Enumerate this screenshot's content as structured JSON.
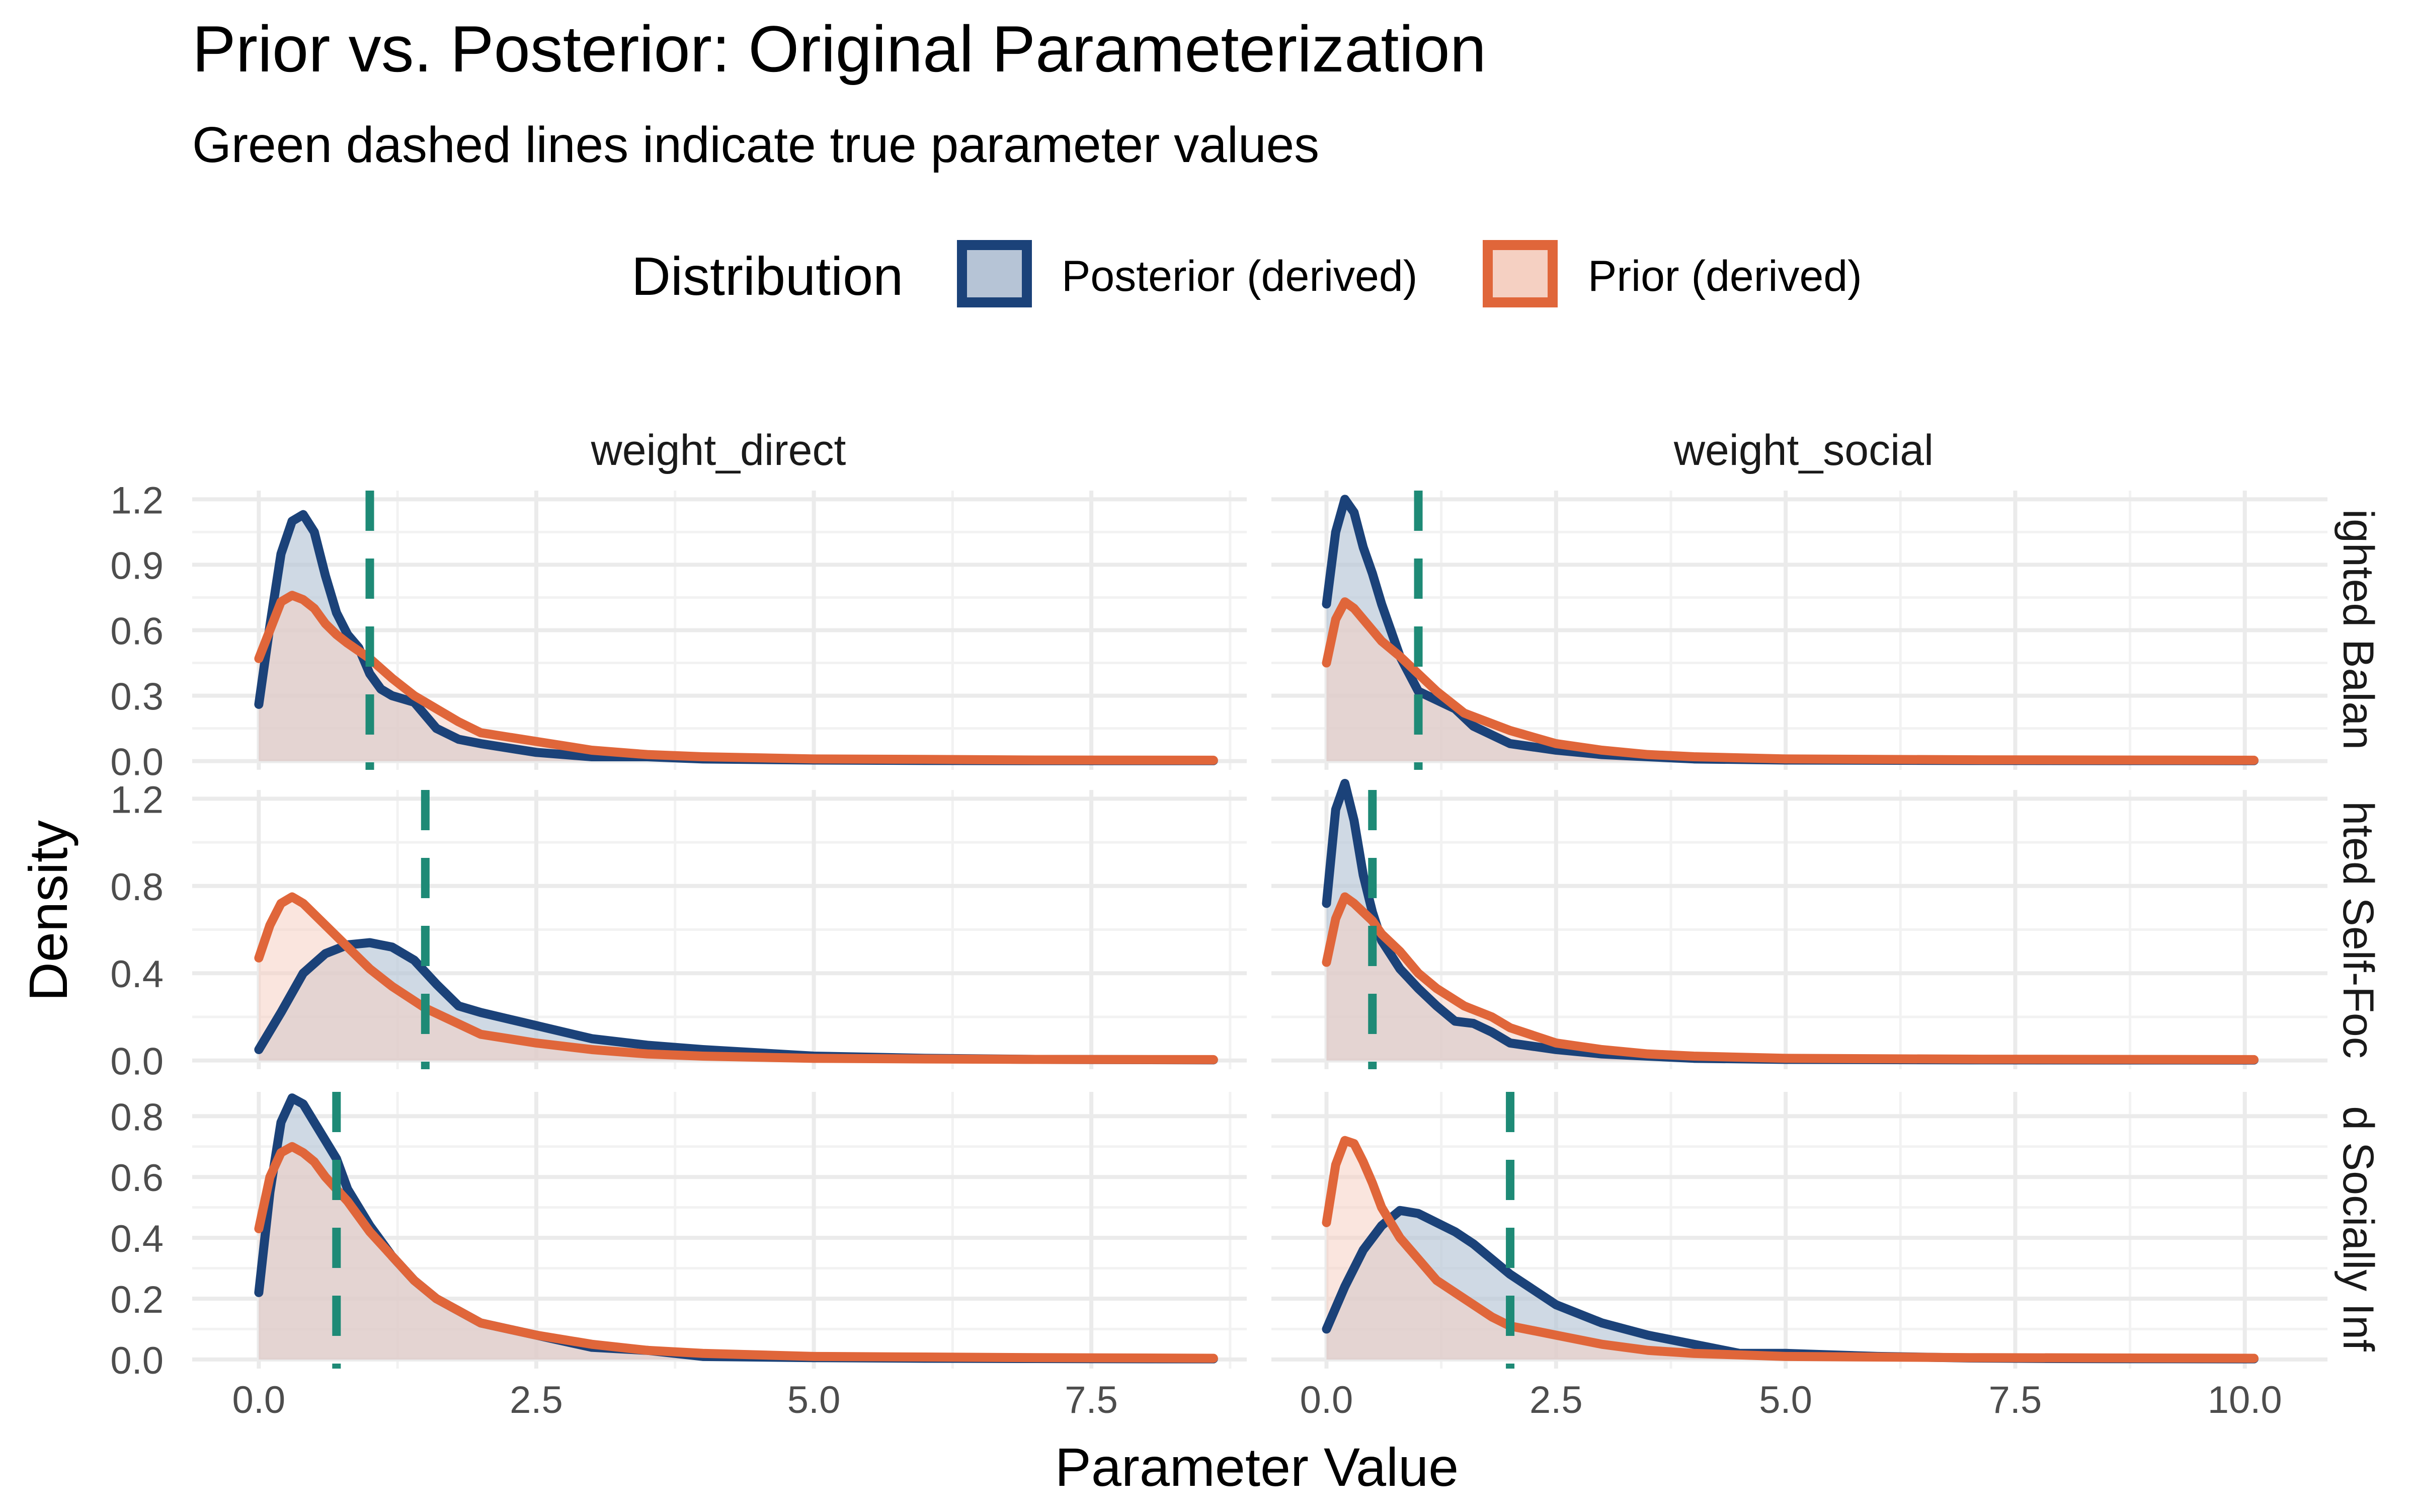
{
  "chart_data": {
    "type": "area",
    "title": "Prior vs. Posterior: Original Parameterization",
    "subtitle": "Green dashed lines indicate true parameter values",
    "xlabel": "Parameter Value",
    "ylabel": "Density",
    "legend": {
      "title": "Distribution",
      "position": "top",
      "entries": [
        {
          "name": "Posterior (derived)",
          "line_color": "#1b4279",
          "fill_color": "#b6c4d6"
        },
        {
          "name": "Prior (derived)",
          "line_color": "#e0663a",
          "fill_color": "#f5d0c2"
        }
      ]
    },
    "colors": {
      "posterior": "#1b4279",
      "prior": "#e0663a",
      "true_value": "#1e8a76",
      "grid": "#ebebeb"
    },
    "grid": true,
    "facet_columns": [
      "weight_direct",
      "weight_social"
    ],
    "facet_rows": [
      "ighted Balan",
      "hted Self-Foc",
      "d Socially Inf"
    ],
    "panels": [
      {
        "row": 0,
        "col": 0,
        "xlim": [
          -0.6,
          8.9
        ],
        "ylim": [
          -0.04,
          1.24
        ],
        "yticks": [
          0.0,
          0.3,
          0.6,
          0.9,
          1.2
        ],
        "ytick_labels": [
          "0.0",
          "0.3",
          "0.6",
          "0.9",
          "1.2"
        ],
        "xticks": [
          0,
          2.5,
          5.0,
          7.5
        ],
        "xtick_labels": [
          "0.0",
          "2.5",
          "5.0",
          "7.5"
        ],
        "true_value": 1.0,
        "series": [
          {
            "name": "Posterior (derived)",
            "x": [
              0.0,
              0.1,
              0.2,
              0.3,
              0.4,
              0.5,
              0.6,
              0.7,
              0.8,
              0.9,
              1.0,
              1.1,
              1.2,
              1.4,
              1.6,
              1.8,
              2.0,
              2.5,
              3.0,
              3.5,
              4.0,
              5.0,
              6.0,
              7.0,
              8.6
            ],
            "y": [
              0.26,
              0.62,
              0.95,
              1.1,
              1.13,
              1.05,
              0.85,
              0.68,
              0.58,
              0.52,
              0.4,
              0.33,
              0.3,
              0.27,
              0.15,
              0.1,
              0.08,
              0.04,
              0.02,
              0.02,
              0.01,
              0.005,
              0.003,
              0.002,
              0.002
            ]
          },
          {
            "name": "Prior (derived)",
            "x": [
              0.0,
              0.1,
              0.2,
              0.3,
              0.4,
              0.5,
              0.6,
              0.7,
              0.8,
              1.0,
              1.2,
              1.4,
              1.6,
              1.8,
              2.0,
              2.5,
              3.0,
              3.5,
              4.0,
              5.0,
              6.0,
              7.0,
              8.6
            ],
            "y": [
              0.47,
              0.6,
              0.73,
              0.76,
              0.74,
              0.7,
              0.63,
              0.58,
              0.54,
              0.47,
              0.38,
              0.3,
              0.24,
              0.18,
              0.13,
              0.09,
              0.05,
              0.03,
              0.02,
              0.01,
              0.008,
              0.005,
              0.004
            ]
          }
        ]
      },
      {
        "row": 0,
        "col": 1,
        "xlim": [
          -0.6,
          10.9
        ],
        "ylim": [
          -0.04,
          1.24
        ],
        "yticks": [
          0.0,
          0.3,
          0.6,
          0.9,
          1.2
        ],
        "ytick_labels": [
          "0.0",
          "0.3",
          "0.6",
          "0.9",
          "1.2"
        ],
        "xticks": [
          0,
          2.5,
          5.0,
          7.5,
          10.0
        ],
        "xtick_labels": [
          "0.0",
          "2.5",
          "5.0",
          "7.5",
          "10.0"
        ],
        "true_value": 1.0,
        "series": [
          {
            "name": "Posterior (derived)",
            "x": [
              0.0,
              0.1,
              0.2,
              0.3,
              0.4,
              0.5,
              0.6,
              0.7,
              0.8,
              1.0,
              1.2,
              1.4,
              1.6,
              1.8,
              2.0,
              2.5,
              3.0,
              3.5,
              4.0,
              5.0,
              7.0,
              10.1
            ],
            "y": [
              0.72,
              1.05,
              1.2,
              1.14,
              0.98,
              0.86,
              0.72,
              0.6,
              0.48,
              0.32,
              0.28,
              0.24,
              0.16,
              0.12,
              0.08,
              0.05,
              0.03,
              0.02,
              0.01,
              0.005,
              0.003,
              0.002
            ]
          },
          {
            "name": "Prior (derived)",
            "x": [
              0.0,
              0.1,
              0.2,
              0.3,
              0.4,
              0.5,
              0.6,
              0.8,
              1.0,
              1.2,
              1.5,
              2.0,
              2.5,
              3.0,
              3.5,
              4.0,
              5.0,
              7.0,
              10.1
            ],
            "y": [
              0.45,
              0.65,
              0.73,
              0.7,
              0.65,
              0.6,
              0.55,
              0.48,
              0.4,
              0.32,
              0.22,
              0.14,
              0.08,
              0.05,
              0.03,
              0.02,
              0.01,
              0.006,
              0.004
            ]
          }
        ]
      },
      {
        "row": 1,
        "col": 0,
        "xlim": [
          -0.6,
          8.9
        ],
        "ylim": [
          -0.04,
          1.24
        ],
        "yticks": [
          0.0,
          0.4,
          0.8,
          1.2
        ],
        "ytick_labels": [
          "0.0",
          "0.4",
          "0.8",
          "1.2"
        ],
        "xticks": [
          0,
          2.5,
          5.0,
          7.5
        ],
        "xtick_labels": [
          "0.0",
          "2.5",
          "5.0",
          "7.5"
        ],
        "true_value": 1.5,
        "series": [
          {
            "name": "Posterior (derived)",
            "x": [
              0.0,
              0.2,
              0.4,
              0.6,
              0.8,
              1.0,
              1.2,
              1.4,
              1.6,
              1.8,
              2.0,
              2.5,
              3.0,
              3.5,
              4.0,
              5.0,
              6.0,
              7.0,
              8.6
            ],
            "y": [
              0.05,
              0.22,
              0.4,
              0.49,
              0.53,
              0.54,
              0.52,
              0.46,
              0.35,
              0.25,
              0.22,
              0.16,
              0.1,
              0.07,
              0.05,
              0.02,
              0.01,
              0.005,
              0.003
            ]
          },
          {
            "name": "Prior (derived)",
            "x": [
              0.0,
              0.1,
              0.2,
              0.3,
              0.4,
              0.6,
              0.8,
              1.0,
              1.2,
              1.5,
              2.0,
              2.5,
              3.0,
              3.5,
              4.0,
              5.0,
              6.0,
              7.0,
              8.6
            ],
            "y": [
              0.47,
              0.62,
              0.72,
              0.75,
              0.72,
              0.62,
              0.52,
              0.42,
              0.34,
              0.24,
              0.12,
              0.08,
              0.05,
              0.03,
              0.02,
              0.01,
              0.007,
              0.005,
              0.004
            ]
          }
        ]
      },
      {
        "row": 1,
        "col": 1,
        "xlim": [
          -0.6,
          10.9
        ],
        "ylim": [
          -0.04,
          1.24
        ],
        "yticks": [
          0.0,
          0.4,
          0.8,
          1.2
        ],
        "ytick_labels": [
          "0.0",
          "0.4",
          "0.8",
          "1.2"
        ],
        "xticks": [
          0,
          2.5,
          5.0,
          7.5,
          10.0
        ],
        "xtick_labels": [
          "0.0",
          "2.5",
          "5.0",
          "7.5",
          "10.0"
        ],
        "true_value": 0.5,
        "series": [
          {
            "name": "Posterior (derived)",
            "x": [
              0.0,
              0.1,
              0.2,
              0.3,
              0.4,
              0.5,
              0.6,
              0.8,
              1.0,
              1.2,
              1.4,
              1.6,
              1.8,
              2.0,
              2.5,
              3.0,
              3.5,
              4.0,
              5.0,
              7.0,
              10.1
            ],
            "y": [
              0.72,
              1.15,
              1.27,
              1.1,
              0.85,
              0.68,
              0.55,
              0.42,
              0.33,
              0.25,
              0.18,
              0.17,
              0.13,
              0.08,
              0.05,
              0.03,
              0.02,
              0.01,
              0.005,
              0.003,
              0.002
            ]
          },
          {
            "name": "Prior (derived)",
            "x": [
              0.0,
              0.1,
              0.2,
              0.3,
              0.4,
              0.5,
              0.6,
              0.8,
              1.0,
              1.2,
              1.5,
              1.8,
              2.0,
              2.5,
              3.0,
              3.5,
              4.0,
              5.0,
              7.0,
              10.1
            ],
            "y": [
              0.45,
              0.65,
              0.75,
              0.72,
              0.68,
              0.64,
              0.58,
              0.5,
              0.4,
              0.33,
              0.25,
              0.2,
              0.15,
              0.08,
              0.05,
              0.03,
              0.02,
              0.01,
              0.006,
              0.004
            ]
          }
        ]
      },
      {
        "row": 2,
        "col": 0,
        "xlim": [
          -0.6,
          8.9
        ],
        "ylim": [
          -0.03,
          0.88
        ],
        "yticks": [
          0.0,
          0.2,
          0.4,
          0.6,
          0.8
        ],
        "ytick_labels": [
          "0.0",
          "0.2",
          "0.4",
          "0.6",
          "0.8"
        ],
        "xticks": [
          0,
          2.5,
          5.0,
          7.5
        ],
        "xtick_labels": [
          "0.0",
          "2.5",
          "5.0",
          "7.5"
        ],
        "true_value": 0.7,
        "series": [
          {
            "name": "Posterior (derived)",
            "x": [
              0.0,
              0.1,
              0.2,
              0.3,
              0.4,
              0.5,
              0.6,
              0.7,
              0.8,
              1.0,
              1.2,
              1.4,
              1.6,
              1.8,
              2.0,
              2.5,
              3.0,
              3.5,
              4.0,
              5.0,
              6.0,
              7.0,
              8.6
            ],
            "y": [
              0.22,
              0.55,
              0.78,
              0.86,
              0.84,
              0.78,
              0.72,
              0.66,
              0.56,
              0.44,
              0.34,
              0.26,
              0.2,
              0.16,
              0.12,
              0.08,
              0.04,
              0.03,
              0.01,
              0.006,
              0.004,
              0.003,
              0.002
            ]
          },
          {
            "name": "Prior (derived)",
            "x": [
              0.0,
              0.1,
              0.2,
              0.3,
              0.4,
              0.5,
              0.6,
              0.8,
              1.0,
              1.2,
              1.4,
              1.6,
              1.8,
              2.0,
              2.5,
              3.0,
              3.5,
              4.0,
              5.0,
              6.0,
              7.0,
              8.6
            ],
            "y": [
              0.43,
              0.6,
              0.68,
              0.7,
              0.68,
              0.65,
              0.6,
              0.52,
              0.42,
              0.34,
              0.26,
              0.2,
              0.16,
              0.12,
              0.08,
              0.05,
              0.03,
              0.02,
              0.01,
              0.008,
              0.006,
              0.004
            ]
          }
        ]
      },
      {
        "row": 2,
        "col": 1,
        "xlim": [
          -0.6,
          10.9
        ],
        "ylim": [
          -0.03,
          0.88
        ],
        "yticks": [
          0.0,
          0.2,
          0.4,
          0.6,
          0.8
        ],
        "ytick_labels": [
          "0.0",
          "0.2",
          "0.4",
          "0.6",
          "0.8"
        ],
        "xticks": [
          0,
          2.5,
          5.0,
          7.5,
          10.0
        ],
        "xtick_labels": [
          "0.0",
          "2.5",
          "5.0",
          "7.5",
          "10.0"
        ],
        "true_value": 2.0,
        "series": [
          {
            "name": "Posterior (derived)",
            "x": [
              0.0,
              0.2,
              0.4,
              0.6,
              0.8,
              1.0,
              1.2,
              1.4,
              1.6,
              1.8,
              2.0,
              2.2,
              2.5,
              3.0,
              3.5,
              4.0,
              4.5,
              5.0,
              6.0,
              7.0,
              8.0,
              10.1
            ],
            "y": [
              0.1,
              0.24,
              0.36,
              0.44,
              0.49,
              0.48,
              0.45,
              0.42,
              0.38,
              0.33,
              0.28,
              0.24,
              0.18,
              0.12,
              0.08,
              0.05,
              0.02,
              0.02,
              0.01,
              0.005,
              0.003,
              0.002
            ]
          },
          {
            "name": "Prior (derived)",
            "x": [
              0.0,
              0.1,
              0.2,
              0.3,
              0.4,
              0.5,
              0.6,
              0.8,
              1.0,
              1.2,
              1.5,
              1.8,
              2.0,
              2.5,
              3.0,
              3.5,
              4.0,
              5.0,
              7.0,
              10.1
            ],
            "y": [
              0.45,
              0.64,
              0.72,
              0.71,
              0.65,
              0.58,
              0.5,
              0.4,
              0.33,
              0.26,
              0.2,
              0.14,
              0.11,
              0.08,
              0.05,
              0.03,
              0.02,
              0.01,
              0.006,
              0.004
            ]
          }
        ]
      }
    ]
  }
}
